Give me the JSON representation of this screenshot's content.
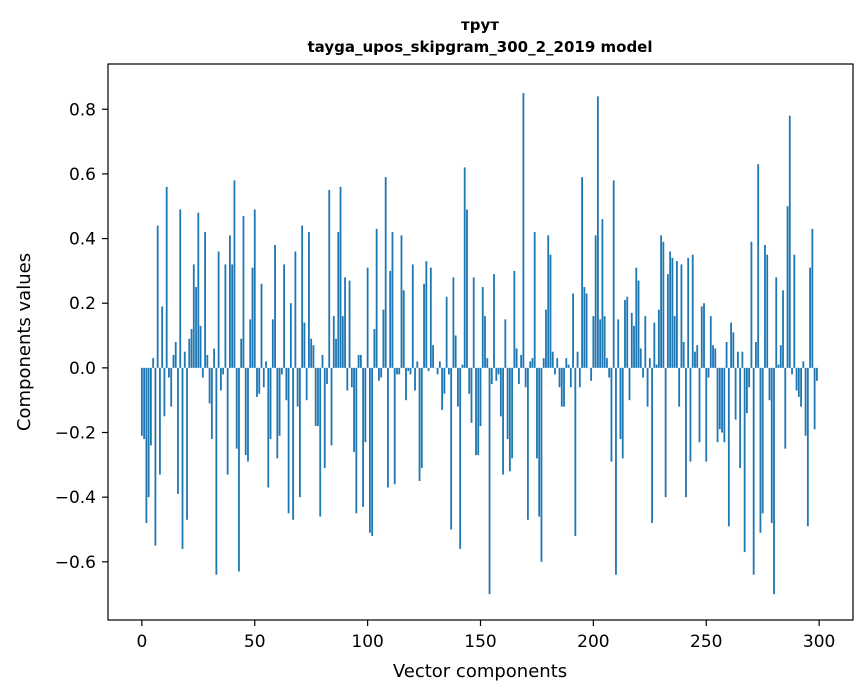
{
  "chart_data": {
    "type": "bar",
    "title": "трут",
    "subtitle": "tayga_upos_skipgram_300_2_2019 model",
    "xlabel": "Vector components",
    "ylabel": "Components values",
    "xlim": [
      -15,
      315
    ],
    "ylim": [
      -0.78,
      0.94
    ],
    "xticks": [
      0,
      50,
      100,
      150,
      200,
      250,
      300
    ],
    "yticks": [
      -0.6,
      -0.4,
      -0.2,
      0.0,
      0.2,
      0.4,
      0.6,
      0.8
    ],
    "ytick_labels": [
      "−0.6",
      "−0.4",
      "−0.2",
      "0.0",
      "0.2",
      "0.4",
      "0.6",
      "0.8"
    ],
    "bar_color": "#1f77b4",
    "grid": false,
    "values": [
      -0.21,
      -0.22,
      -0.48,
      -0.4,
      -0.24,
      0.03,
      -0.55,
      0.44,
      -0.33,
      0.19,
      -0.15,
      0.56,
      -0.03,
      -0.12,
      0.04,
      0.08,
      -0.39,
      0.49,
      -0.56,
      0.05,
      -0.47,
      0.09,
      0.12,
      0.32,
      0.25,
      0.48,
      0.13,
      -0.03,
      0.42,
      0.04,
      -0.11,
      -0.22,
      0.06,
      -0.64,
      0.36,
      -0.07,
      -0.02,
      0.32,
      -0.33,
      0.41,
      0.32,
      0.58,
      -0.25,
      -0.63,
      0.09,
      0.47,
      -0.27,
      -0.29,
      0.15,
      0.31,
      0.49,
      -0.09,
      -0.08,
      0.26,
      -0.06,
      0.02,
      -0.37,
      -0.22,
      0.15,
      0.38,
      -0.28,
      -0.21,
      -0.02,
      0.32,
      -0.1,
      -0.45,
      0.2,
      -0.47,
      0.36,
      -0.12,
      -0.4,
      0.44,
      0.14,
      -0.1,
      0.42,
      0.09,
      0.07,
      -0.18,
      -0.18,
      -0.46,
      0.04,
      -0.31,
      -0.05,
      0.55,
      -0.24,
      0.16,
      0.09,
      0.42,
      0.56,
      0.16,
      0.28,
      -0.07,
      0.27,
      -0.06,
      -0.26,
      -0.45,
      0.04,
      0.04,
      -0.43,
      -0.23,
      0.31,
      -0.51,
      -0.52,
      0.12,
      0.43,
      -0.04,
      -0.03,
      0.18,
      0.59,
      -0.37,
      0.3,
      0.42,
      -0.36,
      -0.02,
      -0.02,
      0.41,
      0.24,
      -0.1,
      -0.01,
      -0.02,
      0.32,
      -0.07,
      0.02,
      -0.35,
      -0.31,
      0.26,
      0.33,
      -0.01,
      0.31,
      0.07,
      0.0,
      -0.02,
      0.02,
      -0.13,
      -0.08,
      0.22,
      -0.02,
      -0.5,
      0.28,
      0.1,
      -0.12,
      -0.56,
      0.01,
      0.62,
      0.49,
      -0.08,
      -0.17,
      0.28,
      -0.27,
      -0.27,
      -0.18,
      0.25,
      0.16,
      0.03,
      -0.7,
      -0.05,
      0.29,
      -0.04,
      -0.02,
      -0.15,
      -0.33,
      0.15,
      -0.22,
      -0.32,
      -0.28,
      0.3,
      0.06,
      -0.05,
      0.04,
      0.85,
      -0.06,
      -0.47,
      0.02,
      0.03,
      0.42,
      -0.28,
      -0.46,
      -0.6,
      0.03,
      0.18,
      0.41,
      0.35,
      0.05,
      -0.02,
      0.03,
      -0.06,
      -0.12,
      -0.12,
      0.03,
      0.01,
      -0.06,
      0.23,
      -0.52,
      0.05,
      -0.06,
      0.59,
      0.25,
      0.23,
      0.0,
      -0.04,
      0.16,
      0.41,
      0.84,
      0.15,
      0.46,
      0.16,
      0.03,
      -0.03,
      -0.29,
      0.58,
      -0.64,
      0.15,
      -0.22,
      -0.28,
      0.21,
      0.22,
      -0.1,
      0.17,
      0.13,
      0.31,
      0.27,
      0.06,
      -0.03,
      0.16,
      -0.12,
      0.03,
      -0.48,
      0.14,
      0.01,
      0.18,
      0.41,
      0.39,
      -0.4,
      0.29,
      0.36,
      0.34,
      0.16,
      0.33,
      -0.12,
      0.32,
      0.08,
      -0.4,
      0.34,
      -0.29,
      0.35,
      0.05,
      0.07,
      -0.23,
      0.19,
      0.2,
      -0.29,
      -0.03,
      0.16,
      0.07,
      0.06,
      -0.23,
      -0.19,
      -0.2,
      -0.23,
      0.08,
      -0.49,
      0.14,
      0.11,
      -0.16,
      0.05,
      -0.31,
      0.05,
      -0.57,
      -0.14,
      -0.06,
      0.39,
      -0.64,
      0.08,
      0.63,
      -0.51,
      -0.45,
      0.38,
      0.35,
      -0.1,
      -0.48,
      -0.7,
      0.28,
      0.01,
      0.07,
      0.24,
      -0.25,
      0.5,
      0.78,
      -0.02,
      0.35,
      -0.07,
      -0.09,
      -0.12,
      0.02,
      -0.21,
      -0.49,
      0.31,
      0.43,
      -0.19,
      -0.04
    ]
  }
}
